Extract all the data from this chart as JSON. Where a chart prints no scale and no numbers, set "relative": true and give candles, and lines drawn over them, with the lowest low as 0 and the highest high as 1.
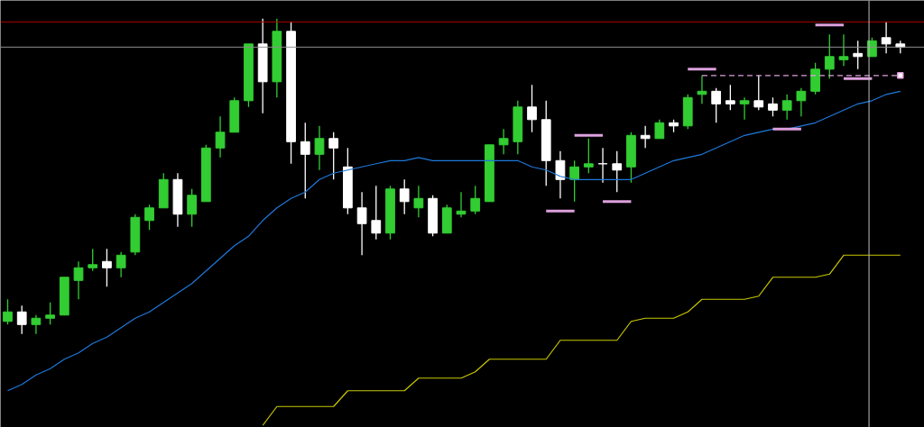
{
  "chart_data": {
    "type": "candlestick",
    "relative": true,
    "tick_labels": false,
    "grid": false,
    "categories": [
      null,
      null,
      null,
      null,
      null,
      null,
      null,
      null,
      null,
      null,
      null,
      null,
      null,
      null,
      null,
      null,
      null,
      null,
      null,
      null,
      null,
      null,
      null,
      null,
      null,
      null,
      null,
      null,
      null,
      null,
      null,
      null,
      null,
      null,
      null,
      null,
      null,
      null,
      null,
      null,
      null,
      null,
      null,
      null,
      null,
      null,
      null,
      null,
      null,
      null,
      null,
      null,
      null,
      null,
      null,
      null,
      null,
      null,
      null,
      null,
      null,
      null,
      null,
      null
    ],
    "ohlc": [
      [
        0.04,
        0.11,
        0.03,
        0.07
      ],
      [
        0.07,
        0.09,
        0.0,
        0.03
      ],
      [
        0.03,
        0.06,
        0.0,
        0.05
      ],
      [
        0.05,
        0.1,
        0.03,
        0.06
      ],
      [
        0.06,
        0.18,
        0.06,
        0.18
      ],
      [
        0.17,
        0.23,
        0.11,
        0.21
      ],
      [
        0.21,
        0.27,
        0.2,
        0.22
      ],
      [
        0.23,
        0.27,
        0.15,
        0.21
      ],
      [
        0.21,
        0.26,
        0.18,
        0.25
      ],
      [
        0.26,
        0.38,
        0.25,
        0.37
      ],
      [
        0.36,
        0.41,
        0.33,
        0.4
      ],
      [
        0.4,
        0.51,
        0.4,
        0.49
      ],
      [
        0.49,
        0.51,
        0.34,
        0.38
      ],
      [
        0.38,
        0.46,
        0.34,
        0.44
      ],
      [
        0.42,
        0.6,
        0.42,
        0.59
      ],
      [
        0.59,
        0.69,
        0.56,
        0.64
      ],
      [
        0.64,
        0.75,
        0.64,
        0.74
      ],
      [
        0.74,
        0.92,
        0.72,
        0.92
      ],
      [
        0.92,
        1.0,
        0.7,
        0.8
      ],
      [
        0.8,
        1.0,
        0.75,
        0.96
      ],
      [
        0.96,
        0.99,
        0.54,
        0.61
      ],
      [
        0.61,
        0.67,
        0.43,
        0.57
      ],
      [
        0.57,
        0.66,
        0.52,
        0.62
      ],
      [
        0.62,
        0.64,
        0.49,
        0.59
      ],
      [
        0.53,
        0.59,
        0.38,
        0.4
      ],
      [
        0.4,
        0.45,
        0.25,
        0.35
      ],
      [
        0.36,
        0.47,
        0.3,
        0.32
      ],
      [
        0.32,
        0.47,
        0.3,
        0.46
      ],
      [
        0.46,
        0.49,
        0.38,
        0.42
      ],
      [
        0.4,
        0.47,
        0.37,
        0.43
      ],
      [
        0.43,
        0.44,
        0.31,
        0.32
      ],
      [
        0.32,
        0.41,
        0.32,
        0.4
      ],
      [
        0.38,
        0.45,
        0.37,
        0.39
      ],
      [
        0.39,
        0.47,
        0.38,
        0.43
      ],
      [
        0.42,
        0.6,
        0.42,
        0.6
      ],
      [
        0.6,
        0.65,
        0.57,
        0.62
      ],
      [
        0.61,
        0.74,
        0.57,
        0.72
      ],
      [
        0.72,
        0.79,
        0.64,
        0.68
      ],
      [
        0.68,
        0.74,
        0.47,
        0.55
      ],
      [
        0.55,
        0.58,
        0.43,
        0.49
      ],
      [
        0.49,
        0.55,
        0.42,
        0.53
      ],
      [
        0.53,
        0.62,
        0.51,
        0.54
      ],
      [
        0.54,
        0.59,
        0.48,
        0.54
      ],
      [
        0.54,
        0.58,
        0.45,
        0.52
      ],
      [
        0.53,
        0.64,
        0.48,
        0.63
      ],
      [
        0.63,
        0.66,
        0.59,
        0.62
      ],
      [
        0.62,
        0.68,
        0.62,
        0.67
      ],
      [
        0.67,
        0.68,
        0.64,
        0.66
      ],
      [
        0.66,
        0.76,
        0.65,
        0.75
      ],
      [
        0.76,
        0.82,
        0.73,
        0.77
      ],
      [
        0.77,
        0.78,
        0.67,
        0.73
      ],
      [
        0.74,
        0.79,
        0.71,
        0.73
      ],
      [
        0.73,
        0.75,
        0.68,
        0.74
      ],
      [
        0.74,
        0.82,
        0.71,
        0.72
      ],
      [
        0.73,
        0.75,
        0.69,
        0.71
      ],
      [
        0.71,
        0.76,
        0.68,
        0.74
      ],
      [
        0.74,
        0.78,
        0.69,
        0.77
      ],
      [
        0.77,
        0.86,
        0.76,
        0.84
      ],
      [
        0.84,
        0.95,
        0.81,
        0.88
      ],
      [
        0.87,
        0.95,
        0.85,
        0.88
      ],
      [
        0.89,
        0.93,
        0.84,
        0.88
      ],
      [
        0.88,
        0.94,
        0.88,
        0.93
      ],
      [
        0.94,
        0.99,
        0.89,
        0.92
      ],
      [
        0.92,
        0.93,
        0.89,
        0.91
      ]
    ],
    "colors": [
      "#32cd32",
      "#ffffff",
      "#32cd32",
      "#32cd32",
      "#32cd32",
      "#32cd32",
      "#32cd32",
      "#ffffff",
      "#32cd32",
      "#32cd32",
      "#32cd32",
      "#32cd32",
      "#ffffff",
      "#32cd32",
      "#32cd32",
      "#32cd32",
      "#32cd32",
      "#32cd32",
      "#ffffff",
      "#32cd32",
      "#ffffff",
      "#ffffff",
      "#32cd32",
      "#ffffff",
      "#ffffff",
      "#ffffff",
      "#ffffff",
      "#32cd32",
      "#ffffff",
      "#32cd32",
      "#ffffff",
      "#32cd32",
      "#32cd32",
      "#32cd32",
      "#32cd32",
      "#32cd32",
      "#32cd32",
      "#ffffff",
      "#ffffff",
      "#ffffff",
      "#32cd32",
      "#32cd32",
      "#ffffff",
      "#ffffff",
      "#32cd32",
      "#ffffff",
      "#32cd32",
      "#ffffff",
      "#32cd32",
      "#32cd32",
      "#ffffff",
      "#ffffff",
      "#32cd32",
      "#ffffff",
      "#ffffff",
      "#32cd32",
      "#32cd32",
      "#32cd32",
      "#32cd32",
      "#32cd32",
      "#ffffff",
      "#32cd32",
      "#ffffff",
      "#ffffff"
    ],
    "series": [
      {
        "type": "line",
        "color": "#1e78dc",
        "line_style": "solid",
        "values": [
          -0.18,
          -0.16,
          -0.13,
          -0.11,
          -0.08,
          -0.06,
          -0.03,
          -0.01,
          0.02,
          0.05,
          0.07,
          0.1,
          0.13,
          0.16,
          0.2,
          0.24,
          0.28,
          0.31,
          0.36,
          0.4,
          0.43,
          0.45,
          0.49,
          0.51,
          0.52,
          0.53,
          0.54,
          0.55,
          0.55,
          0.56,
          0.55,
          0.55,
          0.55,
          0.55,
          0.55,
          0.55,
          0.55,
          0.53,
          0.52,
          0.5,
          0.49,
          0.49,
          0.49,
          0.49,
          0.49,
          0.51,
          0.53,
          0.55,
          0.56,
          0.57,
          0.59,
          0.61,
          0.63,
          0.64,
          0.65,
          0.65,
          0.66,
          0.67,
          0.69,
          0.71,
          0.73,
          0.74,
          0.76,
          0.77
        ]
      },
      {
        "type": "line",
        "color": "#c8c800",
        "line_style": "solid",
        "values": [
          null,
          null,
          null,
          null,
          null,
          null,
          null,
          null,
          null,
          null,
          null,
          null,
          null,
          null,
          null,
          null,
          null,
          null,
          -0.29,
          -0.23,
          -0.23,
          -0.23,
          -0.23,
          -0.23,
          -0.18,
          -0.18,
          -0.18,
          -0.18,
          -0.18,
          -0.14,
          -0.14,
          -0.14,
          -0.14,
          -0.12,
          -0.08,
          -0.08,
          -0.08,
          -0.08,
          -0.08,
          -0.02,
          -0.02,
          -0.02,
          -0.02,
          -0.02,
          0.04,
          0.05,
          0.05,
          0.05,
          0.07,
          0.11,
          0.11,
          0.11,
          0.11,
          0.12,
          0.18,
          0.18,
          0.18,
          0.18,
          0.19,
          0.25,
          0.25,
          0.25,
          0.25,
          0.25
        ]
      },
      {
        "type": "line",
        "color": "#dda0dd",
        "line_style": "solid",
        "values": [
          null,
          null,
          null,
          null,
          null,
          null,
          null,
          null,
          null,
          null,
          null,
          null,
          null,
          null,
          null,
          null,
          null,
          null,
          null,
          null,
          null,
          null,
          null,
          null,
          null,
          null,
          null,
          null,
          null,
          null,
          null,
          null,
          null,
          null,
          null,
          null,
          null,
          null,
          0.39,
          0.39,
          0.39,
          null,
          null,
          null,
          null,
          null,
          null,
          null,
          null,
          null,
          null,
          null,
          null,
          null,
          null,
          null,
          null,
          null,
          null,
          null,
          null,
          null,
          null,
          null
        ]
      },
      {
        "type": "line",
        "color": "#dda0dd",
        "line_style": "solid",
        "values": [
          null,
          null,
          null,
          null,
          null,
          null,
          null,
          null,
          null,
          null,
          null,
          null,
          null,
          null,
          null,
          null,
          null,
          null,
          null,
          null,
          null,
          null,
          null,
          null,
          null,
          null,
          null,
          null,
          null,
          null,
          null,
          null,
          null,
          null,
          null,
          null,
          null,
          null,
          null,
          null,
          0.63,
          0.63,
          0.63,
          null,
          null,
          null,
          null,
          null,
          null,
          null,
          null,
          null,
          null,
          null,
          null,
          null,
          null,
          null,
          null,
          null,
          null,
          null,
          null,
          null
        ]
      },
      {
        "type": "line",
        "color": "#dda0dd",
        "line_style": "solid",
        "values": [
          null,
          null,
          null,
          null,
          null,
          null,
          null,
          null,
          null,
          null,
          null,
          null,
          null,
          null,
          null,
          null,
          null,
          null,
          null,
          null,
          null,
          null,
          null,
          null,
          null,
          null,
          null,
          null,
          null,
          null,
          null,
          null,
          null,
          null,
          null,
          null,
          null,
          null,
          null,
          null,
          null,
          null,
          0.42,
          0.42,
          0.42,
          null,
          null,
          null,
          null,
          null,
          null,
          null,
          null,
          null,
          null,
          null,
          null,
          null,
          null,
          null,
          null,
          null,
          null,
          null
        ]
      },
      {
        "type": "line",
        "color": "#dda0dd",
        "line_style": "solid",
        "values": [
          null,
          null,
          null,
          null,
          null,
          null,
          null,
          null,
          null,
          null,
          null,
          null,
          null,
          null,
          null,
          null,
          null,
          null,
          null,
          null,
          null,
          null,
          null,
          null,
          null,
          null,
          null,
          null,
          null,
          null,
          null,
          null,
          null,
          null,
          null,
          null,
          null,
          null,
          null,
          null,
          null,
          null,
          null,
          null,
          null,
          null,
          null,
          null,
          0.84,
          0.84,
          0.84,
          null,
          null,
          null,
          null,
          null,
          null,
          null,
          null,
          null,
          null,
          null,
          null,
          null
        ]
      },
      {
        "type": "line",
        "color": "#dda0dd",
        "line_style": "solid",
        "values": [
          null,
          null,
          null,
          null,
          null,
          null,
          null,
          null,
          null,
          null,
          null,
          null,
          null,
          null,
          null,
          null,
          null,
          null,
          null,
          null,
          null,
          null,
          null,
          null,
          null,
          null,
          null,
          null,
          null,
          null,
          null,
          null,
          null,
          null,
          null,
          null,
          null,
          null,
          null,
          null,
          null,
          null,
          null,
          null,
          null,
          null,
          null,
          null,
          null,
          null,
          null,
          null,
          null,
          null,
          0.65,
          0.65,
          0.65,
          null,
          null,
          null,
          null,
          null,
          null,
          null
        ]
      },
      {
        "type": "line",
        "color": "#dda0dd",
        "line_style": "solid",
        "values": [
          null,
          null,
          null,
          null,
          null,
          null,
          null,
          null,
          null,
          null,
          null,
          null,
          null,
          null,
          null,
          null,
          null,
          null,
          null,
          null,
          null,
          null,
          null,
          null,
          null,
          null,
          null,
          null,
          null,
          null,
          null,
          null,
          null,
          null,
          null,
          null,
          null,
          null,
          null,
          null,
          null,
          null,
          null,
          null,
          null,
          null,
          null,
          null,
          null,
          null,
          null,
          null,
          null,
          null,
          null,
          null,
          null,
          0.98,
          0.98,
          0.98,
          null,
          null,
          null,
          null
        ]
      },
      {
        "type": "line",
        "color": "#dda0dd",
        "line_style": "solid",
        "values": [
          null,
          null,
          null,
          null,
          null,
          null,
          null,
          null,
          null,
          null,
          null,
          null,
          null,
          null,
          null,
          null,
          null,
          null,
          null,
          null,
          null,
          null,
          null,
          null,
          null,
          null,
          null,
          null,
          null,
          null,
          null,
          null,
          null,
          null,
          null,
          null,
          null,
          null,
          null,
          null,
          null,
          null,
          null,
          null,
          null,
          null,
          null,
          null,
          null,
          null,
          null,
          null,
          null,
          null,
          null,
          null,
          null,
          null,
          null,
          0.81,
          0.81,
          0.81,
          null,
          null
        ]
      },
      {
        "type": "line",
        "color": "#dda0dd",
        "line_style": "dashed",
        "values": [
          null,
          null,
          null,
          null,
          null,
          null,
          null,
          null,
          null,
          null,
          null,
          null,
          null,
          null,
          null,
          null,
          null,
          null,
          null,
          null,
          null,
          null,
          null,
          null,
          null,
          null,
          null,
          null,
          null,
          null,
          null,
          null,
          null,
          null,
          null,
          null,
          null,
          null,
          null,
          null,
          null,
          null,
          null,
          null,
          null,
          null,
          null,
          null,
          null,
          0.82,
          0.82,
          0.82,
          0.82,
          0.82,
          0.82,
          0.82,
          0.82,
          0.82,
          0.82,
          0.82,
          0.82,
          0.82,
          0.82,
          0.82
        ]
      }
    ],
    "ref_lines": [
      {
        "axis": "y",
        "value": 0.99,
        "color": "#b00000",
        "line_style": "solid"
      },
      {
        "axis": "y",
        "value": 0.91,
        "color": "#909090",
        "line_style": "solid"
      }
    ]
  }
}
